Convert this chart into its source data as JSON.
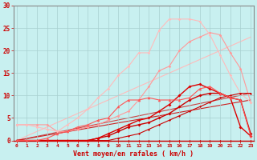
{
  "xlabel": "Vent moyen/en rafales ( km/h )",
  "background_color": "#c8f0f0",
  "grid_color": "#a8d0d0",
  "x_ticks": [
    0,
    1,
    2,
    3,
    4,
    5,
    6,
    7,
    8,
    9,
    10,
    11,
    12,
    13,
    14,
    15,
    16,
    17,
    18,
    19,
    20,
    21,
    22,
    23
  ],
  "ylim": [
    0,
    30
  ],
  "yticks": [
    0,
    5,
    10,
    15,
    20,
    25,
    30
  ],
  "series": [
    {
      "x": [
        0,
        1,
        2,
        3,
        4,
        5,
        6,
        7,
        8,
        9,
        10,
        11,
        12,
        13,
        14,
        15,
        16,
        17,
        18,
        19,
        20,
        21,
        22,
        23
      ],
      "y": [
        0,
        0,
        0,
        0,
        0,
        0,
        0,
        0,
        0,
        0,
        0,
        0,
        0,
        0,
        0,
        0,
        0,
        0,
        0,
        0,
        0,
        0,
        0,
        0
      ],
      "color": "#cc0000",
      "linewidth": 0.8,
      "marker": "D",
      "markersize": 1.5,
      "alpha": 1.0,
      "zorder": 3
    },
    {
      "x": [
        0,
        1,
        2,
        3,
        4,
        5,
        6,
        7,
        8,
        9,
        10,
        11,
        12,
        13,
        14,
        15,
        16,
        17,
        18,
        19,
        20,
        21,
        22,
        23
      ],
      "y": [
        0,
        0,
        0,
        0,
        0,
        0,
        0,
        0,
        0,
        0,
        0.5,
        1.0,
        1.5,
        2.5,
        3.5,
        4.5,
        5.5,
        6.5,
        7.5,
        8.5,
        9.5,
        10.0,
        10.5,
        10.5
      ],
      "color": "#cc0000",
      "linewidth": 0.8,
      "marker": "D",
      "markersize": 1.5,
      "alpha": 1.0,
      "zorder": 3
    },
    {
      "x": [
        0,
        1,
        2,
        3,
        4,
        5,
        6,
        7,
        8,
        9,
        10,
        11,
        12,
        13,
        14,
        15,
        16,
        17,
        18,
        19,
        20,
        21,
        22,
        23
      ],
      "y": [
        0,
        0,
        0,
        0,
        0,
        0,
        0,
        0,
        0.5,
        1.0,
        2.0,
        3.0,
        3.5,
        4.0,
        5.0,
        6.0,
        7.5,
        9.0,
        10.0,
        10.5,
        10.5,
        9.5,
        9.0,
        1.5
      ],
      "color": "#cc0000",
      "linewidth": 1.0,
      "marker": "D",
      "markersize": 2.0,
      "alpha": 1.0,
      "zorder": 3
    },
    {
      "x": [
        0,
        1,
        2,
        3,
        4,
        5,
        6,
        7,
        8,
        9,
        10,
        11,
        12,
        13,
        14,
        15,
        16,
        17,
        18,
        19,
        20,
        21,
        22,
        23
      ],
      "y": [
        0,
        0,
        0,
        0,
        0,
        0,
        0,
        0,
        0.5,
        1.5,
        2.5,
        3.5,
        4.5,
        5.0,
        6.5,
        8.0,
        10.0,
        12.0,
        12.5,
        11.5,
        10.5,
        9.5,
        3.0,
        1.0
      ],
      "color": "#dd0000",
      "linewidth": 1.0,
      "marker": "D",
      "markersize": 2.0,
      "alpha": 1.0,
      "zorder": 3
    },
    {
      "x": [
        0,
        1,
        2,
        3,
        4,
        5,
        6,
        7,
        8,
        9,
        10,
        11,
        12,
        13,
        14,
        15,
        16,
        17,
        18,
        19,
        20,
        21,
        22,
        23
      ],
      "y": [
        0,
        0,
        0,
        0.5,
        1.5,
        2.0,
        3.0,
        3.5,
        4.5,
        5.0,
        7.5,
        9.0,
        9.0,
        9.5,
        9.0,
        9.0,
        9.0,
        9.5,
        11.5,
        12.0,
        10.5,
        9.5,
        9.0,
        1.0
      ],
      "color": "#ff5555",
      "linewidth": 0.8,
      "marker": "^",
      "markersize": 2.5,
      "alpha": 1.0,
      "zorder": 3
    },
    {
      "x": [
        0,
        1,
        2,
        3,
        4,
        5,
        6,
        7,
        8,
        9,
        10,
        11,
        12,
        13,
        14,
        15,
        16,
        17,
        18,
        19,
        20,
        21,
        22,
        23
      ],
      "y": [
        3.5,
        3.5,
        3.5,
        3.5,
        2.0,
        2.0,
        2.5,
        3.0,
        3.5,
        4.5,
        5.5,
        6.5,
        9.0,
        12.0,
        15.5,
        16.5,
        20.0,
        22.0,
        23.0,
        24.0,
        23.5,
        19.5,
        16.0,
        8.5
      ],
      "color": "#ff9999",
      "linewidth": 0.8,
      "marker": "D",
      "markersize": 1.8,
      "alpha": 1.0,
      "zorder": 2
    },
    {
      "x": [
        0,
        1,
        2,
        3,
        4,
        5,
        6,
        7,
        8,
        9,
        10,
        11,
        12,
        13,
        14,
        15,
        16,
        17,
        18,
        19,
        20,
        21,
        22,
        23
      ],
      "y": [
        3.5,
        3.5,
        3.0,
        2.5,
        2.0,
        3.5,
        5.0,
        7.0,
        9.5,
        11.5,
        14.5,
        16.5,
        19.5,
        19.5,
        24.5,
        27.0,
        27.0,
        27.0,
        26.5,
        23.5,
        19.0,
        14.5,
        10.5,
        8.5
      ],
      "color": "#ffbbbb",
      "linewidth": 0.8,
      "marker": "D",
      "markersize": 1.8,
      "alpha": 1.0,
      "zorder": 2
    }
  ],
  "straight_lines": [
    {
      "x": [
        0,
        23
      ],
      "y": [
        0,
        23
      ],
      "color": "#ffbbbb",
      "linewidth": 0.8,
      "alpha": 1.0,
      "zorder": 1
    },
    {
      "x": [
        0,
        23
      ],
      "y": [
        0,
        10.5
      ],
      "color": "#cc4444",
      "linewidth": 0.8,
      "alpha": 1.0,
      "zorder": 1
    },
    {
      "x": [
        0,
        23
      ],
      "y": [
        0,
        9.0
      ],
      "color": "#cc2222",
      "linewidth": 0.8,
      "alpha": 1.0,
      "zorder": 1
    }
  ]
}
